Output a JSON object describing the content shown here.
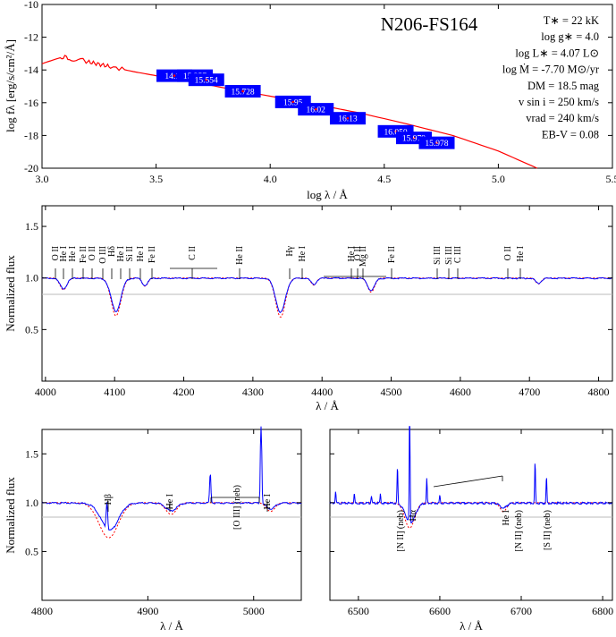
{
  "colors": {
    "model": "#ff0000",
    "observed": "#0000ff",
    "photometry_box": "#0000ff",
    "photometry_text": "#ffffff",
    "reference_line": "#bbbbbb",
    "axis": "#000000"
  },
  "chart_data": [
    {
      "type": "line",
      "title": "N206-FS164",
      "xlabel": "log λ / Å",
      "ylabel": "log fλ [erg/s/cm²/Å]",
      "xlim": [
        3.0,
        5.5
      ],
      "ylim": [
        -20,
        -10
      ],
      "x_ticks": [
        "3.0",
        "3.5",
        "4.0",
        "4.5",
        "5.0",
        "5.5"
      ],
      "y_ticks": [
        "-10",
        "-12",
        "-14",
        "-16",
        "-18",
        "-20"
      ],
      "parameters": [
        "T∗ = 22 kK",
        "log g∗ = 4.0",
        "log L∗ = 4.07 L⊙",
        "log Ṁ = -7.70 M⊙/yr",
        "DM = 18.5 mag",
        "v sin i = 250 km/s",
        "vrad = 240 km/s",
        "EB-V = 0.08"
      ],
      "sed_model": {
        "x": [
          3.0,
          3.05,
          3.08,
          3.1,
          3.12,
          3.15,
          3.18,
          3.2,
          3.25,
          3.3,
          3.4,
          3.5,
          3.6,
          3.8,
          4.0,
          4.2,
          4.4,
          4.6,
          4.8,
          5.0,
          5.17
        ],
        "y": [
          -13.62,
          -13.38,
          -13.25,
          -13.2,
          -13.3,
          -13.38,
          -13.42,
          -13.5,
          -13.65,
          -13.8,
          -14.1,
          -14.35,
          -14.55,
          -15.1,
          -15.6,
          -16.1,
          -16.65,
          -17.3,
          -18.0,
          -18.95,
          -20.0
        ]
      },
      "photometry": [
        {
          "label": "14.13",
          "x": 3.58,
          "y": -14.35
        },
        {
          "label": "15.357",
          "x": 3.67,
          "y": -14.35
        },
        {
          "label": "15.554",
          "x": 3.72,
          "y": -14.6
        },
        {
          "label": "15.728",
          "x": 3.88,
          "y": -15.3
        },
        {
          "label": "15.95",
          "x": 4.1,
          "y": -15.95
        },
        {
          "label": "16.02",
          "x": 4.2,
          "y": -16.4
        },
        {
          "label": "16.13",
          "x": 4.34,
          "y": -16.95
        },
        {
          "label": "16.050",
          "x": 4.55,
          "y": -17.75
        },
        {
          "label": "15.979",
          "x": 4.63,
          "y": -18.15
        },
        {
          "label": "15.978",
          "x": 4.73,
          "y": -18.45
        }
      ]
    },
    {
      "type": "line",
      "xlabel": "λ / Å",
      "ylabel": "Normalized flux",
      "xlim": [
        3995,
        4820
      ],
      "ylim": [
        0.0,
        1.7
      ],
      "x_ticks": [
        "4000",
        "4100",
        "4200",
        "4300",
        "4400",
        "4500",
        "4600",
        "4700",
        "4800"
      ],
      "y_ticks": [
        "0.5",
        "1.0",
        "1.5"
      ],
      "series": [],
      "lines": [
        {
          "center": 4026,
          "depth": 0.1,
          "width": 5
        },
        {
          "center": 4102,
          "depth": 0.32,
          "width": 7
        },
        {
          "center": 4144,
          "depth": 0.07,
          "width": 4
        },
        {
          "center": 4340,
          "depth": 0.33,
          "width": 7
        },
        {
          "center": 4388,
          "depth": 0.06,
          "width": 4
        },
        {
          "center": 4471,
          "depth": 0.12,
          "width": 5
        },
        {
          "center": 4713,
          "depth": 0.05,
          "width": 4
        }
      ],
      "labels": [
        "O II",
        "He I",
        "He I",
        "Fe II",
        "O II",
        "O III",
        "Hδ",
        "He I",
        "Si II",
        "He I",
        "Fe II",
        "C II",
        "He II",
        "Hγ",
        "He I",
        "He I",
        "O II",
        "Mg II",
        "Fe II",
        "Si III",
        "Si III",
        "C III",
        "O II",
        "He I"
      ]
    },
    {
      "type": "line",
      "xlabel": "λ / Å",
      "ylabel": "Normalized flux",
      "xlim": [
        4800,
        5045
      ],
      "ylim": [
        0.0,
        1.75
      ],
      "x_ticks": [
        "4800",
        "4900",
        "5000"
      ],
      "y_ticks": [
        "0.5",
        "1.0",
        "1.5"
      ],
      "series": [],
      "labels": [
        "Hβ",
        "He I",
        "[O III] (neb)",
        "He I"
      ]
    },
    {
      "type": "line",
      "xlabel": "λ / Å",
      "xlim": [
        6465,
        6812
      ],
      "ylim": [
        0.0,
        1.75
      ],
      "x_ticks": [
        "6500",
        "6600",
        "6700",
        "6800"
      ],
      "series": [],
      "labels": [
        "[N II] (neb)",
        "Hα",
        "He I",
        "[N II] (neb)",
        "[S II] (neb)"
      ]
    }
  ]
}
